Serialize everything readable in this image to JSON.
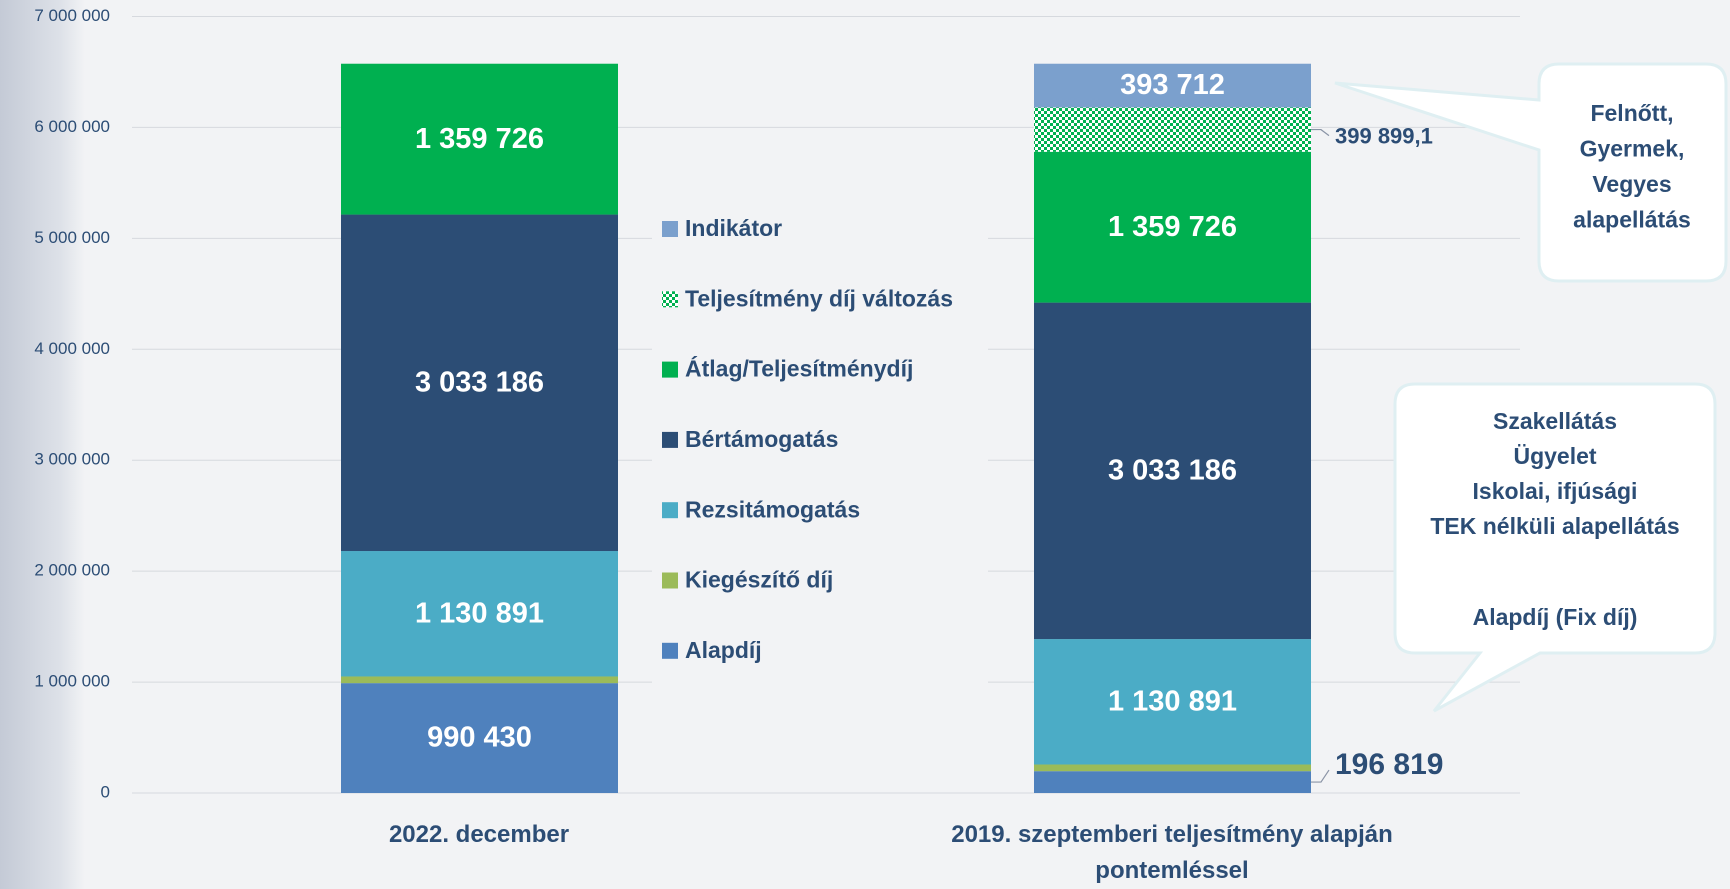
{
  "chart_data": {
    "type": "stacked_bar",
    "categories": [
      "2022. december",
      "2019. szeptemberi teljesítmény alapján pontemléssel"
    ],
    "ylim": [
      0,
      7000000
    ],
    "yticks": [
      {
        "value": 0,
        "label": "0"
      },
      {
        "value": 1000000,
        "label": "1 000 000"
      },
      {
        "value": 2000000,
        "label": "2 000 000"
      },
      {
        "value": 3000000,
        "label": "3 000 000"
      },
      {
        "value": 4000000,
        "label": "4 000 000"
      },
      {
        "value": 5000000,
        "label": "5 000 000"
      },
      {
        "value": 6000000,
        "label": "6 000 000"
      },
      {
        "value": 7000000,
        "label": "7 000 000"
      }
    ],
    "grid": true,
    "legend": "center",
    "series": [
      {
        "name": "Alapdíj",
        "color": "#4f81bd",
        "values": [
          990430,
          196819
        ],
        "value_labels": [
          "990 430",
          "196 819"
        ]
      },
      {
        "name": "Kiegészítő díj",
        "color": "#9bbb59",
        "values": [
          60000,
          60000
        ]
      },
      {
        "name": "Rezsitámogatás",
        "color": "#4bacc6",
        "values": [
          1130891,
          1130891
        ],
        "value_labels": [
          "1 130 891",
          "1 130 891"
        ]
      },
      {
        "name": "Bértámogatás",
        "color": "#2c4d75",
        "values": [
          3033186,
          3033186
        ],
        "value_labels": [
          "3 033 186",
          "3 033 186"
        ]
      },
      {
        "name": "Átlag/Teljesítménydíj",
        "color": "#00b050",
        "values": [
          1359726,
          1359726
        ],
        "value_labels": [
          "1 359 726",
          "1 359 726"
        ]
      },
      {
        "name": "Teljesítmény díj változás",
        "color": "#00b050",
        "pattern": "checker",
        "values": [
          null,
          399899.1
        ],
        "value_labels": [
          null,
          "399 899,1"
        ]
      },
      {
        "name": "Indikátor",
        "color": "#7ba0cd",
        "values": [
          null,
          393712
        ],
        "value_labels": [
          null,
          "393 712"
        ]
      }
    ],
    "annotations": [
      [
        "Felnőtt,",
        "Gyermek,",
        "Vegyes",
        "alapellátás"
      ],
      [
        "Szakellátás",
        "Ügyelet",
        "Iskolai, ifjúsági",
        "TEK nélküli alapellátás"
      ],
      [
        "Alapdíj (Fix díj)"
      ]
    ]
  }
}
